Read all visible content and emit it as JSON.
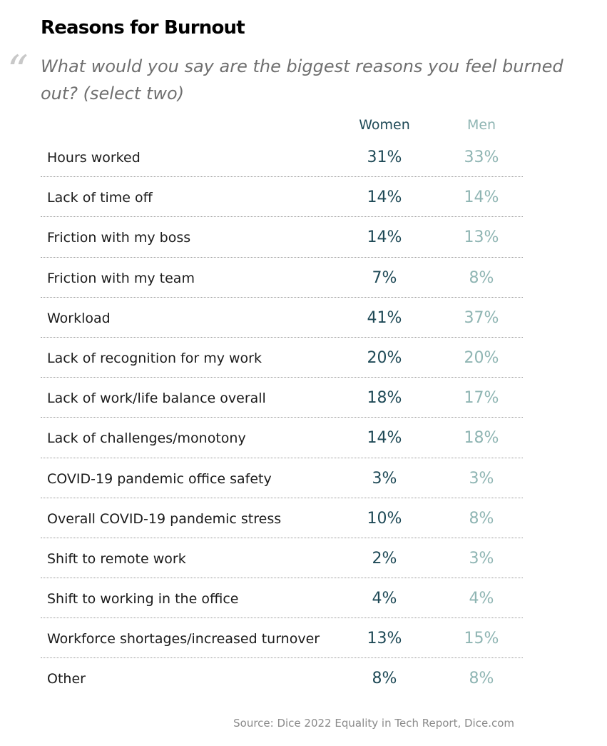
{
  "chart_data": {
    "type": "table",
    "title": "Reasons for Burnout",
    "subtitle": "What would you say are the biggest reasons you feel burned out? (select two)",
    "quote_mark": "“",
    "columns": [
      "Women",
      "Men"
    ],
    "colors": {
      "women": "#1f4a57",
      "men": "#8fb5b3",
      "quote_mark": "#c8c8c8",
      "subtitle": "#6f6f6f",
      "source": "#8a8a8a"
    },
    "rows": [
      {
        "label": "Hours worked",
        "women": "31%",
        "men": "33%"
      },
      {
        "label": "Lack of time off",
        "women": "14%",
        "men": "14%"
      },
      {
        "label": "Friction with my boss",
        "women": "14%",
        "men": "13%"
      },
      {
        "label": "Friction with my team",
        "women": "7%",
        "men": "8%"
      },
      {
        "label": "Workload",
        "women": "41%",
        "men": "37%"
      },
      {
        "label": "Lack of recognition for my work",
        "women": "20%",
        "men": "20%"
      },
      {
        "label": "Lack of work/life balance overall",
        "women": "18%",
        "men": "17%"
      },
      {
        "label": "Lack of challenges/monotony",
        "women": "14%",
        "men": "18%"
      },
      {
        "label": "COVID-19 pandemic office safety",
        "women": "3%",
        "men": "3%"
      },
      {
        "label": "Overall COVID-19 pandemic stress",
        "women": "10%",
        "men": "8%"
      },
      {
        "label": "Shift to remote work",
        "women": "2%",
        "men": "3%"
      },
      {
        "label": "Shift to working in the office",
        "women": "4%",
        "men": "4%"
      },
      {
        "label": "Workforce shortages/increased turnover",
        "women": "13%",
        "men": "15%"
      },
      {
        "label": "Other",
        "women": "8%",
        "men": "8%"
      }
    ],
    "source": "Source: Dice 2022 Equality in Tech Report, Dice.com"
  }
}
